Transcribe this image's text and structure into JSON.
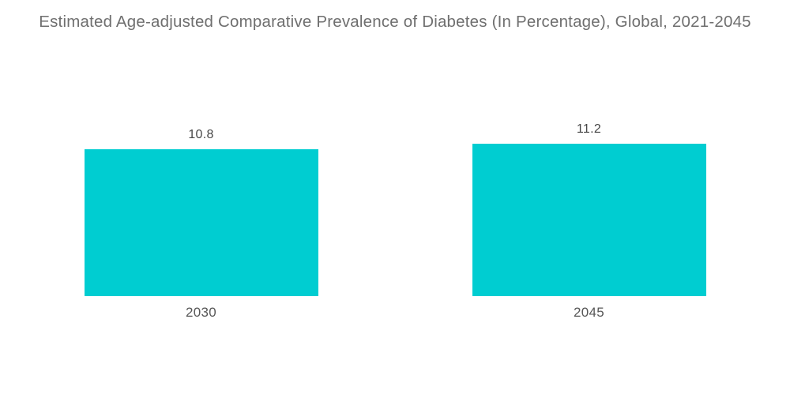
{
  "chart_data": {
    "type": "bar",
    "title": "Estimated Age-adjusted Comparative Prevalence of Diabetes (In Percentage), Global, 2021-2045",
    "categories": [
      "2030",
      "2045"
    ],
    "values": [
      10.8,
      11.2
    ],
    "value_labels": [
      "10.8",
      "11.2"
    ],
    "xlabel": "",
    "ylabel": "",
    "ylim": [
      0,
      11.6
    ],
    "grid": false,
    "legend": "none",
    "axes_visible": false,
    "bar_color": "#00CDD1"
  },
  "colors": {
    "background": "#ffffff",
    "title_text": "#6f6f6f",
    "value_text": "#474747",
    "category_text": "#575757",
    "bar": "#00CDD1"
  }
}
